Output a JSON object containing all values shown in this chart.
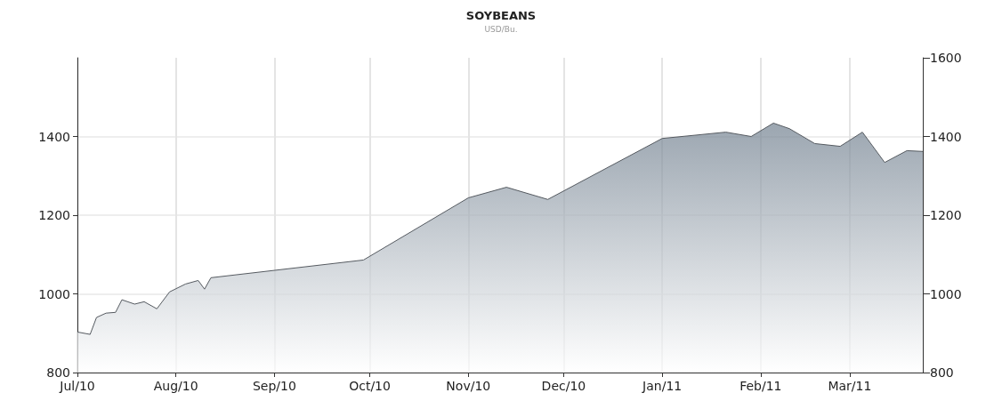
{
  "chart_data": {
    "type": "area",
    "title": "SOYBEANS",
    "subtitle": "USD/Bu.",
    "x": [
      "2010-07-01",
      "2010-07-05",
      "2010-07-07",
      "2010-07-10",
      "2010-07-13",
      "2010-07-15",
      "2010-07-19",
      "2010-07-22",
      "2010-07-26",
      "2010-07-30",
      "2010-08-04",
      "2010-08-08",
      "2010-08-10",
      "2010-08-12",
      "2010-09-29",
      "2010-11-01",
      "2010-11-13",
      "2010-11-26",
      "2011-01-01",
      "2011-01-21",
      "2011-01-29",
      "2011-02-05",
      "2011-02-10",
      "2011-02-18",
      "2011-02-26",
      "2011-03-05",
      "2011-03-12",
      "2011-03-19",
      "2011-03-24"
    ],
    "series": [
      {
        "color": "#71808f",
        "values": [
          903,
          897,
          940,
          951,
          953,
          985,
          974,
          980,
          962,
          1005,
          1025,
          1034,
          1012,
          1041,
          1086,
          1244,
          1271,
          1240,
          1395,
          1411,
          1400,
          1434,
          1420,
          1382,
          1375,
          1411,
          1334,
          1364,
          1362
        ]
      }
    ],
    "xlim": [
      "2010-07-01",
      "2011-03-24"
    ],
    "xticks": [
      {
        "value": "2010-07-01",
        "label": "Jul/10"
      },
      {
        "value": "2010-08-01",
        "label": "Aug/10"
      },
      {
        "value": "2010-09-01",
        "label": "Sep/10"
      },
      {
        "value": "2010-10-01",
        "label": "Oct/10"
      },
      {
        "value": "2010-11-01",
        "label": "Nov/10"
      },
      {
        "value": "2010-12-01",
        "label": "Dec/10"
      },
      {
        "value": "2011-01-01",
        "label": "Jan/11"
      },
      {
        "value": "2011-02-01",
        "label": "Feb/11"
      },
      {
        "value": "2011-03-01",
        "label": "Mar/11"
      }
    ],
    "ylim": [
      800,
      1600
    ],
    "yticks": [
      800,
      1000,
      1200,
      1400
    ],
    "y2lim": [
      800,
      1600
    ],
    "y2ticks": [
      800,
      1000,
      1200,
      1400,
      1600
    ],
    "grid": true,
    "marker": "none",
    "line_style": "solid"
  }
}
